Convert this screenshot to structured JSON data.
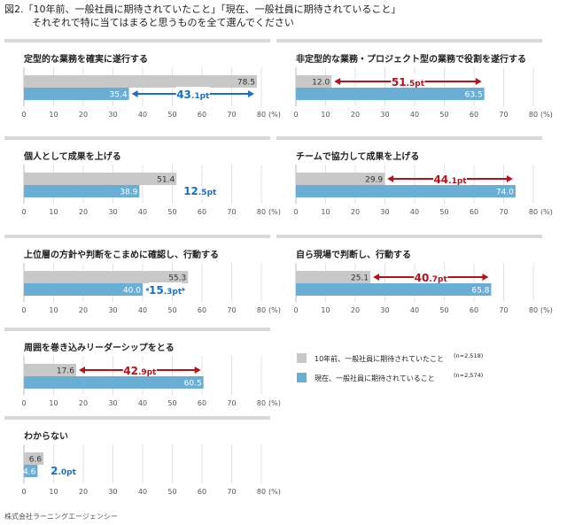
{
  "title": {
    "line1": "図2.「10年前、一般社員に期待されていたこと」「現在、一般社員に期待されていること」",
    "line2": "それぞれで特に当てはまると思うものを全て選んでください"
  },
  "colors": {
    "past": "#c8c8c8",
    "now": "#6aaed6",
    "diff_red": "#b5121b",
    "diff_blue": "#1a6fc7",
    "grid": "#e3e3e3",
    "frame": "#d9d9d9"
  },
  "legend": {
    "past_label": "10年前、一般社員に期待されていたこと",
    "past_n": "(n=2,518)",
    "now_label": "現在、一般社員に期待されていること",
    "now_n": "(n=2,574)"
  },
  "footer": "株式会社ラーニングエージェンシー",
  "chart_data": [
    {
      "type": "bar",
      "orientation": "horizontal",
      "title": "定型的な業務を確実に遂行する",
      "series": [
        {
          "name": "10年前、一般社員に期待されていたこと",
          "values": [
            78.5
          ]
        },
        {
          "name": "現在、一般社員に期待されていること",
          "values": [
            35.4
          ]
        }
      ],
      "diff": {
        "big": "43",
        "small": ".1pt",
        "direction": "down"
      },
      "xlim": [
        0,
        80
      ],
      "xticks": [
        0,
        10,
        20,
        30,
        40,
        50,
        60,
        70,
        80
      ],
      "unit": "(%)"
    },
    {
      "type": "bar",
      "orientation": "horizontal",
      "title": "非定型的な業務・プロジェクト型の業務で役割を遂行する",
      "series": [
        {
          "name": "10年前、一般社員に期待されていたこと",
          "values": [
            12.0
          ]
        },
        {
          "name": "現在、一般社員に期待されていること",
          "values": [
            63.5
          ]
        }
      ],
      "diff": {
        "big": "51",
        "small": ".5pt",
        "direction": "up"
      },
      "xlim": [
        0,
        80
      ],
      "xticks": [
        0,
        10,
        20,
        30,
        40,
        50,
        60,
        70,
        80
      ],
      "unit": "(%)"
    },
    {
      "type": "bar",
      "orientation": "horizontal",
      "title": "個人として成果を上げる",
      "series": [
        {
          "name": "10年前、一般社員に期待されていたこと",
          "values": [
            51.4
          ]
        },
        {
          "name": "現在、一般社員に期待されていること",
          "values": [
            38.9
          ]
        }
      ],
      "diff": {
        "big": "12",
        "small": ".5pt",
        "direction": "down"
      },
      "xlim": [
        0,
        80
      ],
      "xticks": [
        0,
        10,
        20,
        30,
        40,
        50,
        60,
        70,
        80
      ],
      "unit": "(%)"
    },
    {
      "type": "bar",
      "orientation": "horizontal",
      "title": "チームで協力して成果を上げる",
      "series": [
        {
          "name": "10年前、一般社員に期待されていたこと",
          "values": [
            29.9
          ]
        },
        {
          "name": "現在、一般社員に期待されていること",
          "values": [
            74.0
          ]
        }
      ],
      "diff": {
        "big": "44",
        "small": ".1pt",
        "direction": "up"
      },
      "xlim": [
        0,
        80
      ],
      "xticks": [
        0,
        10,
        20,
        30,
        40,
        50,
        60,
        70,
        80
      ],
      "unit": "(%)"
    },
    {
      "type": "bar",
      "orientation": "horizontal",
      "title": "上位層の方針や判断をこまめに確認し、行動する",
      "series": [
        {
          "name": "10年前、一般社員に期待されていたこと",
          "values": [
            55.3
          ]
        },
        {
          "name": "現在、一般社員に期待されていること",
          "values": [
            40.0
          ]
        }
      ],
      "diff": {
        "big": "15",
        "small": ".3pt",
        "direction": "down"
      },
      "xlim": [
        0,
        80
      ],
      "xticks": [
        0,
        10,
        20,
        30,
        40,
        50,
        60,
        70,
        80
      ],
      "unit": "(%)"
    },
    {
      "type": "bar",
      "orientation": "horizontal",
      "title": "自ら現場で判断し、行動する",
      "series": [
        {
          "name": "10年前、一般社員に期待されていたこと",
          "values": [
            25.1
          ]
        },
        {
          "name": "現在、一般社員に期待されていること",
          "values": [
            65.8
          ]
        }
      ],
      "diff": {
        "big": "40",
        "small": ".7pt",
        "direction": "up"
      },
      "xlim": [
        0,
        80
      ],
      "xticks": [
        0,
        10,
        20,
        30,
        40,
        50,
        60,
        70,
        80
      ],
      "unit": "(%)"
    },
    {
      "type": "bar",
      "orientation": "horizontal",
      "title": "周囲を巻き込みリーダーシップをとる",
      "series": [
        {
          "name": "10年前、一般社員に期待されていたこと",
          "values": [
            17.6
          ]
        },
        {
          "name": "現在、一般社員に期待されていること",
          "values": [
            60.5
          ]
        }
      ],
      "diff": {
        "big": "42",
        "small": ".9pt",
        "direction": "up"
      },
      "xlim": [
        0,
        80
      ],
      "xticks": [
        0,
        10,
        20,
        30,
        40,
        50,
        60,
        70,
        80
      ],
      "unit": "(%)"
    },
    {
      "type": "bar",
      "orientation": "horizontal",
      "title": "わからない",
      "series": [
        {
          "name": "10年前、一般社員に期待されていたこと",
          "values": [
            6.6
          ]
        },
        {
          "name": "現在、一般社員に期待されていること",
          "values": [
            4.6
          ]
        }
      ],
      "diff": {
        "big": "2",
        "small": ".0pt",
        "direction": "down",
        "plain": true
      },
      "xlim": [
        0,
        80
      ],
      "xticks": [
        0,
        10,
        20,
        30,
        40,
        50,
        60,
        70,
        80
      ],
      "unit": "(%)"
    }
  ]
}
